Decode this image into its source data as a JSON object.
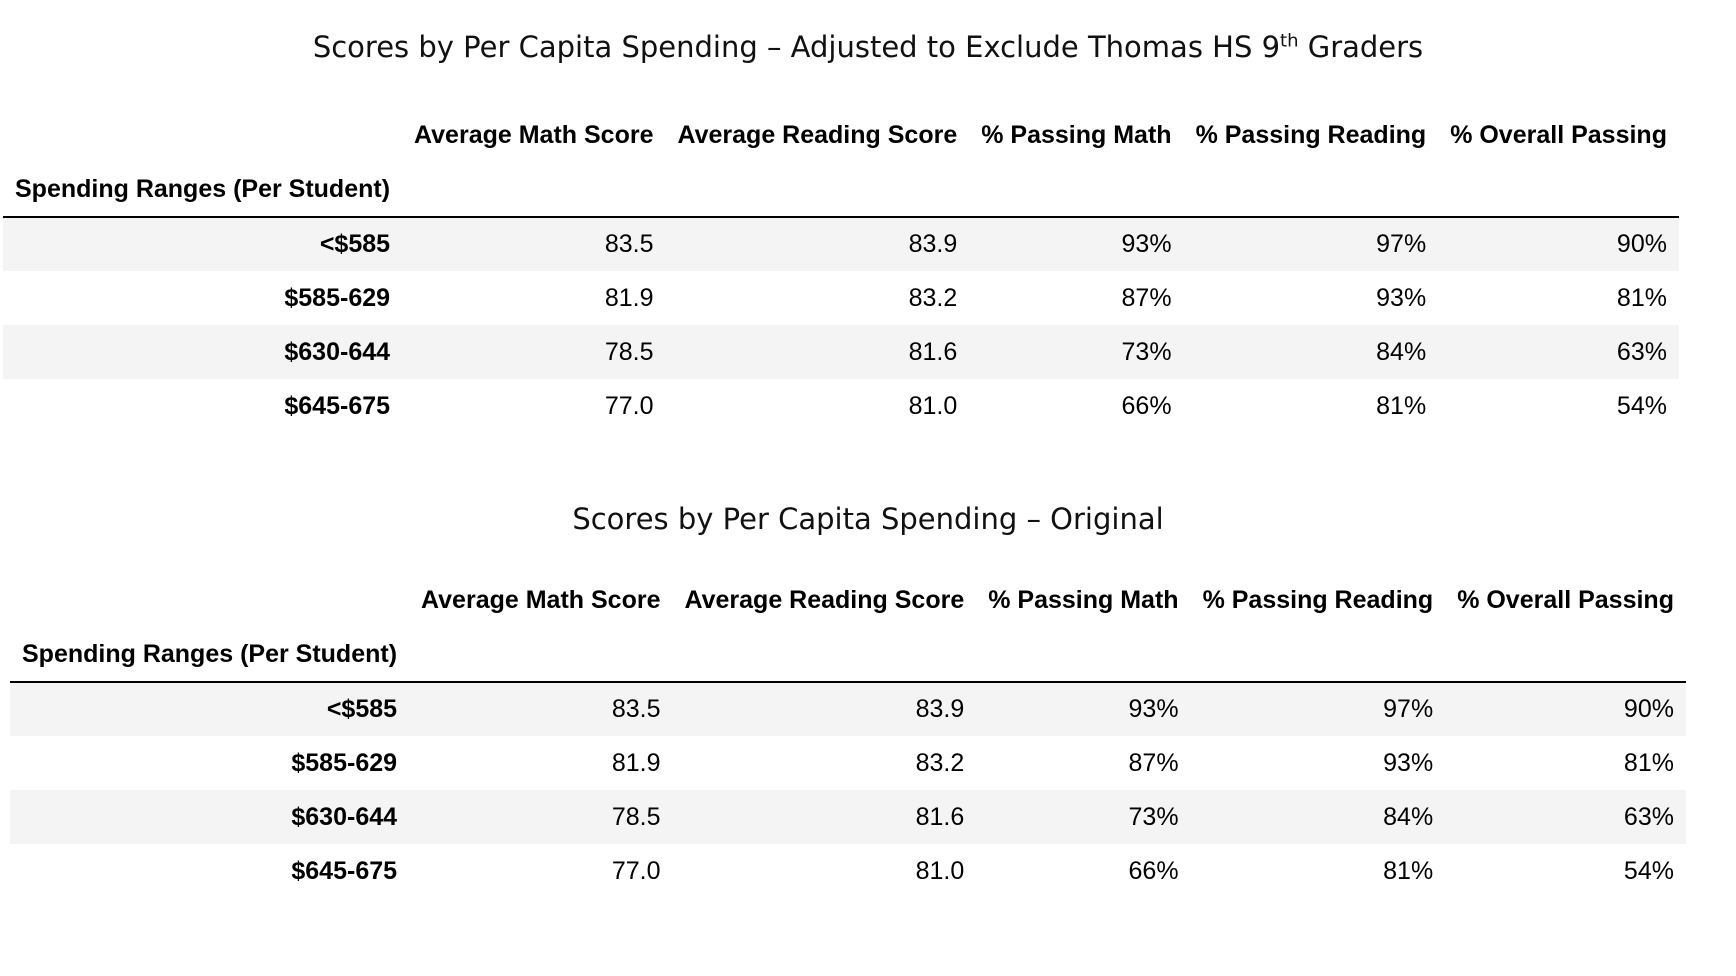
{
  "chart_data": [
    {
      "type": "table",
      "title_main": "Scores by Per Capita Spending – Adjusted to Exclude Thomas HS 9",
      "title_sup": "th",
      "title_tail": " Graders",
      "index_label": "Spending Ranges (Per Student)",
      "columns": [
        "Average Math Score",
        "Average Reading Score",
        "% Passing Math",
        "% Passing Reading",
        "% Overall Passing"
      ],
      "rows": [
        {
          "label": "<$585",
          "values": [
            "83.5",
            "83.9",
            "93%",
            "97%",
            "90%"
          ]
        },
        {
          "label": "$585-629",
          "values": [
            "81.9",
            "83.2",
            "87%",
            "93%",
            "81%"
          ]
        },
        {
          "label": "$630-644",
          "values": [
            "78.5",
            "81.6",
            "73%",
            "84%",
            "63%"
          ]
        },
        {
          "label": "$645-675",
          "values": [
            "77.0",
            "81.0",
            "66%",
            "81%",
            "54%"
          ]
        }
      ]
    },
    {
      "type": "table",
      "title_main": "Scores by Per Capita Spending – Original",
      "title_sup": "",
      "title_tail": "",
      "index_label": "Spending Ranges (Per Student)",
      "columns": [
        "Average Math Score",
        "Average Reading Score",
        "% Passing Math",
        "% Passing Reading",
        "% Overall Passing"
      ],
      "rows": [
        {
          "label": "<$585",
          "values": [
            "83.5",
            "83.9",
            "93%",
            "97%",
            "90%"
          ]
        },
        {
          "label": "$585-629",
          "values": [
            "81.9",
            "83.2",
            "87%",
            "93%",
            "81%"
          ]
        },
        {
          "label": "$630-644",
          "values": [
            "78.5",
            "81.6",
            "73%",
            "84%",
            "63%"
          ]
        },
        {
          "label": "$645-675",
          "values": [
            "77.0",
            "81.0",
            "66%",
            "81%",
            "54%"
          ]
        }
      ]
    }
  ]
}
